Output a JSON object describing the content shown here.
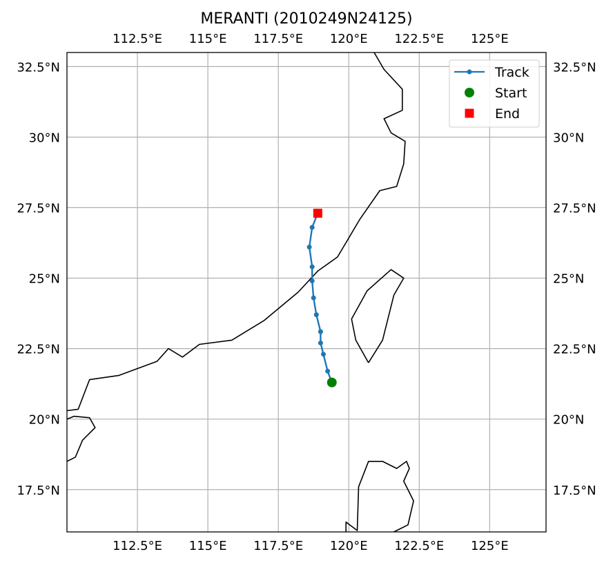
{
  "chart_data": {
    "type": "line",
    "title": "MERANTI (2010249N24125)",
    "xlim": [
      110.0,
      127.0
    ],
    "ylim": [
      16.0,
      33.0
    ],
    "x_ticks": [
      112.5,
      115,
      117.5,
      120,
      122.5,
      125
    ],
    "x_tick_labels": [
      "112.5°E",
      "115°E",
      "117.5°E",
      "120°E",
      "122.5°E",
      "125°E"
    ],
    "y_ticks": [
      17.5,
      20,
      22.5,
      25,
      27.5,
      30,
      32.5
    ],
    "y_tick_labels": [
      "17.5°N",
      "20°N",
      "22.5°N",
      "25°N",
      "27.5°N",
      "30°N",
      "32.5°N"
    ],
    "grid": true,
    "legend_position": "top-right",
    "legend": [
      "Track",
      "Start",
      "End"
    ],
    "series": [
      {
        "name": "Track",
        "color": "#1f77b4",
        "points": [
          [
            119.4,
            21.3
          ],
          [
            119.25,
            21.7
          ],
          [
            119.1,
            22.3
          ],
          [
            119.0,
            22.7
          ],
          [
            119.0,
            23.1
          ],
          [
            118.85,
            23.7
          ],
          [
            118.75,
            24.3
          ],
          [
            118.7,
            24.9
          ],
          [
            118.7,
            25.4
          ],
          [
            118.6,
            26.1
          ],
          [
            118.7,
            26.8
          ],
          [
            118.9,
            27.3
          ]
        ]
      }
    ],
    "start": {
      "name": "Start",
      "color": "#008000",
      "point": [
        119.4,
        21.3
      ]
    },
    "end": {
      "name": "End",
      "color": "#ff0000",
      "point": [
        118.9,
        27.3
      ]
    },
    "coastlines": [
      [
        [
          110.0,
          20.3
        ],
        [
          110.4,
          20.35
        ],
        [
          110.8,
          21.4
        ],
        [
          111.85,
          21.55
        ],
        [
          113.2,
          22.05
        ],
        [
          113.6,
          22.5
        ],
        [
          114.1,
          22.2
        ],
        [
          114.7,
          22.65
        ],
        [
          115.85,
          22.8
        ],
        [
          117.0,
          23.5
        ],
        [
          118.2,
          24.5
        ],
        [
          118.9,
          25.25
        ],
        [
          119.6,
          25.75
        ],
        [
          120.4,
          27.1
        ],
        [
          121.1,
          28.1
        ],
        [
          121.7,
          28.25
        ],
        [
          121.95,
          29.05
        ],
        [
          122.0,
          29.85
        ],
        [
          121.5,
          30.15
        ],
        [
          121.25,
          30.65
        ],
        [
          121.9,
          30.95
        ],
        [
          121.9,
          31.7
        ],
        [
          121.25,
          32.4
        ],
        [
          120.9,
          33.0
        ]
      ],
      [
        [
          120.7,
          22.0
        ],
        [
          120.25,
          22.8
        ],
        [
          120.1,
          23.55
        ],
        [
          120.65,
          24.55
        ],
        [
          121.5,
          25.3
        ],
        [
          121.95,
          25.0
        ],
        [
          121.6,
          24.4
        ],
        [
          121.2,
          22.8
        ],
        [
          120.7,
          22.0
        ]
      ],
      [
        [
          110.0,
          20.0
        ],
        [
          110.25,
          20.1
        ],
        [
          110.8,
          20.05
        ],
        [
          111.0,
          19.7
        ],
        [
          110.55,
          19.25
        ],
        [
          110.3,
          18.65
        ],
        [
          110.0,
          18.5
        ]
      ],
      [
        [
          119.9,
          16.0
        ],
        [
          119.9,
          16.35
        ],
        [
          120.3,
          16.05
        ],
        [
          120.35,
          17.6
        ],
        [
          120.7,
          18.5
        ],
        [
          121.2,
          18.5
        ],
        [
          121.7,
          18.25
        ],
        [
          122.05,
          18.5
        ],
        [
          122.15,
          18.25
        ],
        [
          121.95,
          17.8
        ],
        [
          122.3,
          17.1
        ],
        [
          122.1,
          16.25
        ],
        [
          121.6,
          16.0
        ]
      ]
    ]
  }
}
